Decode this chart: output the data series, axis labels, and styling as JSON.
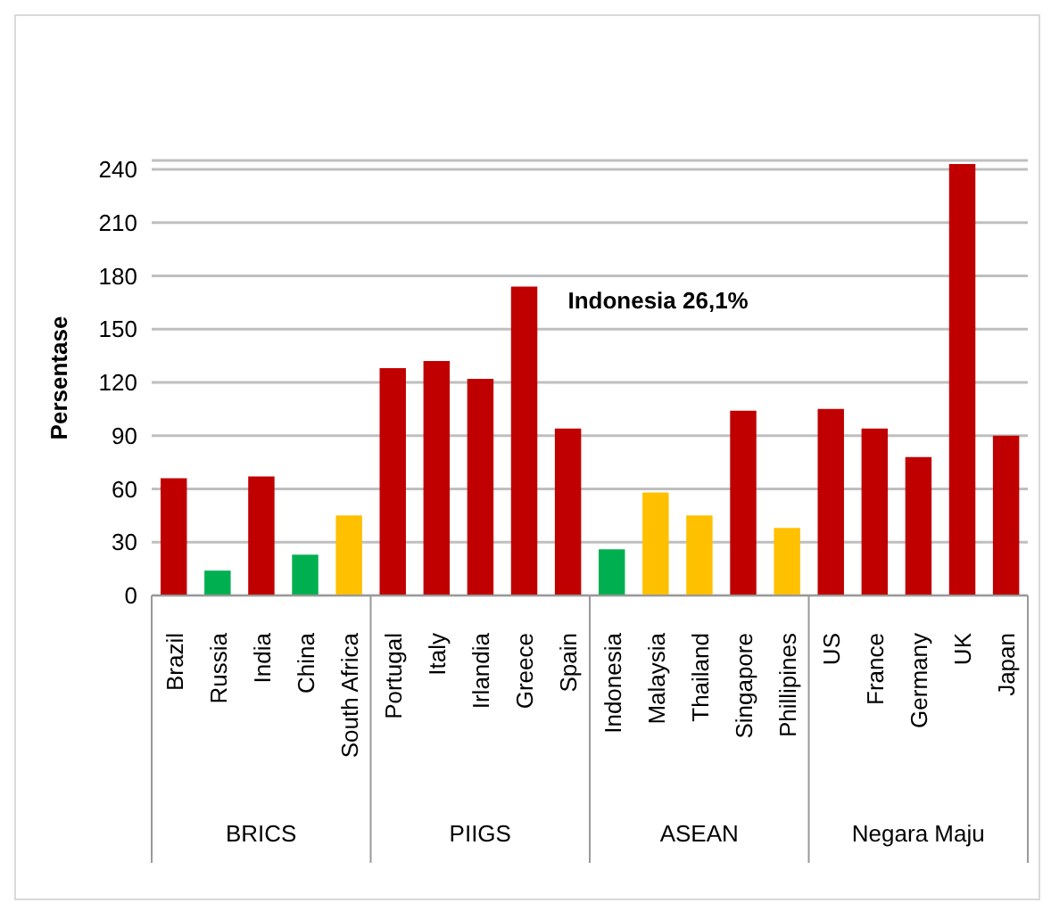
{
  "chart_data": {
    "type": "bar",
    "ylabel": "Persentase",
    "categories": [
      "Brazil",
      "Russia",
      "India",
      "China",
      "South Africa",
      "Portugal",
      "Italy",
      "Irlandia",
      "Greece",
      "Spain",
      "Indonesia",
      "Malaysia",
      "Thailand",
      "Singapore",
      "Phillipines",
      "US",
      "France",
      "Germany",
      "UK",
      "Japan"
    ],
    "values": [
      66,
      14,
      67,
      23,
      45,
      128,
      132,
      122,
      174,
      94,
      26,
      58,
      45,
      104,
      38,
      105,
      94,
      78,
      243,
      90
    ],
    "colors": [
      "#c00000",
      "#00b050",
      "#c00000",
      "#00b050",
      "#ffc000",
      "#c00000",
      "#c00000",
      "#c00000",
      "#c00000",
      "#c00000",
      "#00b050",
      "#ffc000",
      "#ffc000",
      "#c00000",
      "#ffc000",
      "#c00000",
      "#c00000",
      "#c00000",
      "#c00000",
      "#c00000"
    ],
    "ylim": [
      0,
      245
    ],
    "yticks": [
      0,
      30,
      60,
      90,
      120,
      150,
      180,
      210,
      240
    ],
    "grid": "y",
    "annotations": [
      "BRICS",
      "PIIGS",
      "ASEAN",
      "Negara Maju",
      "Indonesia 26,1%"
    ]
  }
}
